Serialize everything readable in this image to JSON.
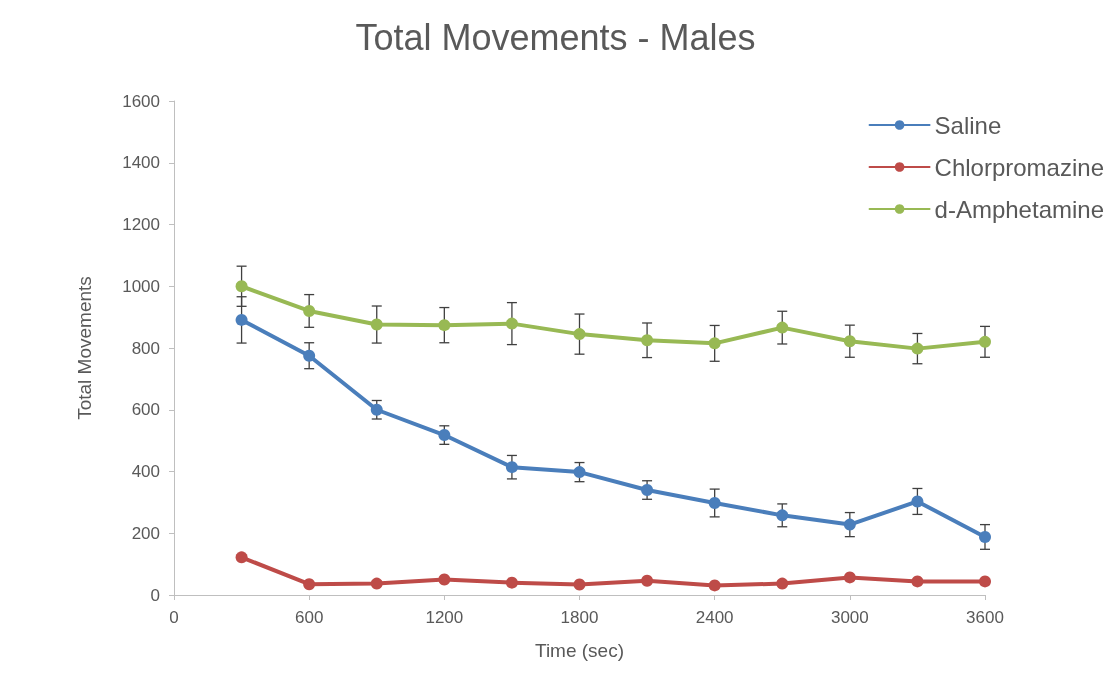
{
  "chart_data": {
    "type": "line",
    "title": "Total Movements - Males",
    "xlabel": "Time (sec)",
    "ylabel": "Total Movements",
    "x": [
      300,
      600,
      900,
      1200,
      1500,
      1800,
      2100,
      2400,
      2700,
      3000,
      3300,
      3600
    ],
    "series": [
      {
        "name": "Saline",
        "color": "#4a7ebb",
        "values": [
          891,
          775,
          600,
          518,
          414,
          398,
          340,
          298,
          258,
          228,
          303,
          188
        ],
        "errors": [
          75,
          42,
          30,
          30,
          38,
          31,
          30,
          45,
          37,
          39,
          42,
          40
        ]
      },
      {
        "name": "Chlorpromazine",
        "color": "#be4b48",
        "values": [
          122,
          35,
          37,
          50,
          40,
          34,
          46,
          31,
          37,
          57,
          44,
          44
        ]
      },
      {
        "name": "d-Amphetamine",
        "color": "#98b954",
        "values": [
          1000,
          920,
          876,
          874,
          879,
          845,
          825,
          815,
          866,
          822,
          798,
          820
        ],
        "errors": [
          65,
          53,
          60,
          57,
          68,
          65,
          56,
          58,
          53,
          52,
          49,
          50
        ]
      }
    ],
    "xlim": [
      0,
      3600
    ],
    "xticks": [
      0,
      600,
      1200,
      1800,
      2400,
      3000,
      3600
    ],
    "ylim": [
      0,
      1600
    ],
    "yticks": [
      0,
      200,
      400,
      600,
      800,
      1000,
      1200,
      1400,
      1600
    ],
    "grid": false,
    "legend": "top right",
    "marker": "circle",
    "line_style": "solid"
  }
}
